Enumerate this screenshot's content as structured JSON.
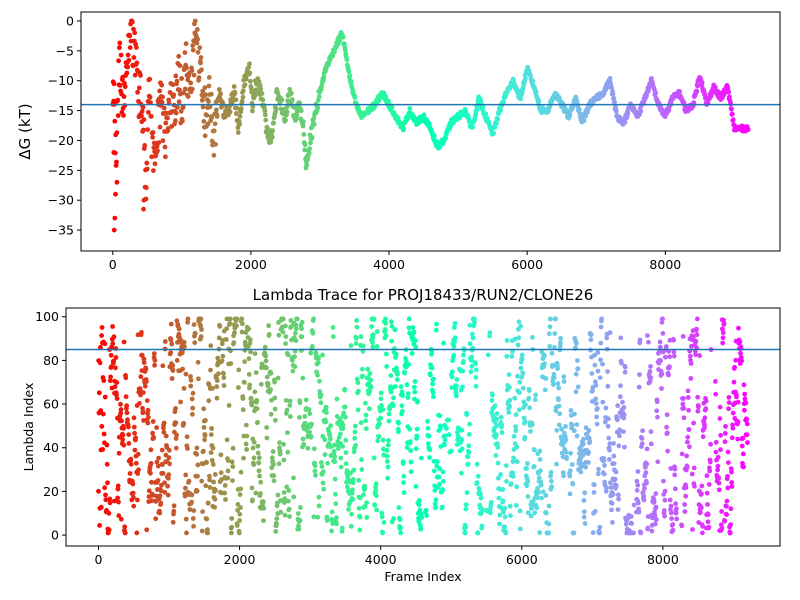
{
  "chart_data": [
    {
      "type": "scatter",
      "title": "",
      "xlabel": "",
      "ylabel": "ΔG (kT)",
      "xlim": [
        -460,
        9660
      ],
      "ylim": [
        -38.5,
        1.5
      ],
      "xticks": [
        0,
        2000,
        4000,
        6000,
        8000
      ],
      "yticks": [
        0,
        -5,
        -10,
        -15,
        -20,
        -25,
        -30,
        -35
      ],
      "hline": -14.0,
      "hline_color": "#1f77b4",
      "colormap": "rainbow (reversed: red at frame 0, violet at last frame)",
      "grid": false,
      "series_key_points": {
        "x": [
          0,
          50,
          100,
          150,
          200,
          260,
          320,
          380,
          440,
          480,
          520,
          580,
          640,
          700,
          760,
          820,
          880,
          950,
          1000,
          1060,
          1120,
          1200,
          1260,
          1320,
          1400,
          1460,
          1540,
          1620,
          1700,
          1760,
          1820,
          1900,
          1980,
          2020,
          2080,
          2140,
          2200,
          2260,
          2320,
          2380,
          2440,
          2500,
          2560,
          2640,
          2700,
          2760,
          2800,
          2860,
          2920,
          3000,
          3080,
          3160,
          3240,
          3320,
          3380,
          3440,
          3520,
          3600,
          3700,
          3800,
          3900,
          4000,
          4100,
          4200,
          4300,
          4400,
          4500,
          4600,
          4700,
          4800,
          4900,
          5000,
          5100,
          5200,
          5300,
          5400,
          5500,
          5600,
          5700,
          5800,
          5900,
          6000,
          6100,
          6200,
          6300,
          6400,
          6500,
          6600,
          6700,
          6800,
          6900,
          7000,
          7100,
          7200,
          7300,
          7400,
          7500,
          7600,
          7700,
          7800,
          7900,
          8000,
          8100,
          8200,
          8300,
          8400,
          8500,
          8600,
          8700,
          8800,
          8900,
          9000,
          9100,
          9200
        ],
        "y": [
          -10,
          -22,
          -5,
          -15,
          -8,
          -2,
          -6,
          -12,
          -16,
          -30,
          -10,
          -22,
          -18,
          -14,
          -20,
          -12,
          -15,
          -10,
          -14,
          -6,
          -12,
          -2,
          -8,
          -16,
          -12,
          -20,
          -12,
          -16,
          -14,
          -12,
          -18,
          -10,
          -8,
          -14,
          -10,
          -12,
          -16,
          -20,
          -18,
          -12,
          -14,
          -16,
          -12,
          -16,
          -14,
          -18,
          -24,
          -20,
          -16,
          -12,
          -8,
          -6,
          -4,
          -2,
          -6,
          -10,
          -14,
          -16,
          -15,
          -14,
          -12,
          -14,
          -16,
          -18,
          -15,
          -17,
          -16,
          -18,
          -21,
          -20,
          -17,
          -16,
          -15,
          -18,
          -13,
          -16,
          -19,
          -15,
          -12,
          -10,
          -13,
          -8,
          -11,
          -15,
          -15,
          -12,
          -14,
          -16,
          -13,
          -17,
          -14,
          -13,
          -12,
          -10,
          -16,
          -17,
          -14,
          -16,
          -13,
          -10,
          -14,
          -16,
          -13,
          -12,
          -15,
          -14,
          -9,
          -14,
          -11,
          -13,
          -11,
          -18,
          -18,
          -18
        ]
      }
    },
    {
      "type": "scatter",
      "title": "Lambda Trace for PROJ18433/RUN2/CLONE26",
      "xlabel": "Frame Index",
      "ylabel": "Lambda Index",
      "xlim": [
        -460,
        9660
      ],
      "ylim": [
        -5,
        104
      ],
      "xticks": [
        0,
        2000,
        4000,
        6000,
        8000
      ],
      "yticks": [
        0,
        20,
        40,
        60,
        80,
        100
      ],
      "hline": 85,
      "hline_color": "#1f77b4",
      "colormap": "rainbow (reversed: red at frame 0, violet at last frame)",
      "grid": false,
      "frame_range": [
        0,
        9200
      ],
      "value_range": [
        0,
        99
      ],
      "sparse_frame_ranges": [
        [
          4580,
          4660
        ],
        [
          4920,
          5000
        ],
        [
          5440,
          5540
        ],
        [
          6640,
          6680
        ],
        [
          7560,
          7620
        ],
        [
          8200,
          8260
        ],
        [
          8680,
          8740
        ]
      ]
    }
  ]
}
